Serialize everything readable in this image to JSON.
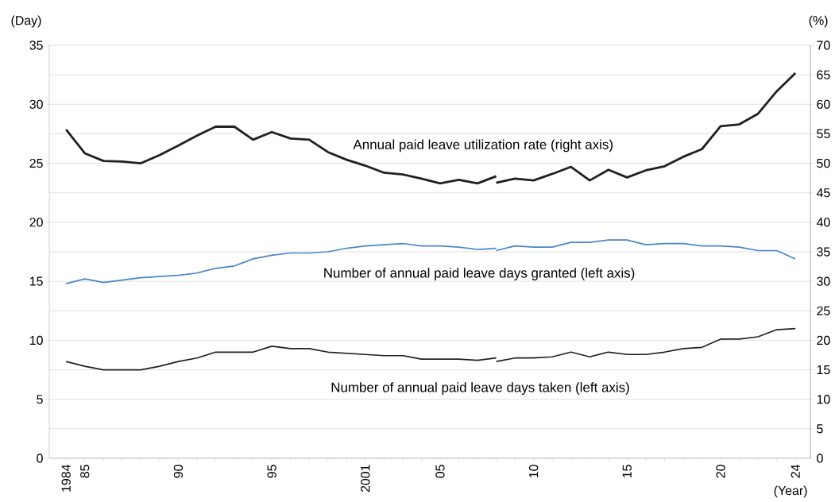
{
  "chart_data": {
    "type": "line",
    "categories": [
      "1984",
      "85",
      null,
      null,
      null,
      null,
      "90",
      null,
      null,
      null,
      null,
      "95",
      null,
      null,
      null,
      null,
      "2001",
      null,
      null,
      null,
      "05",
      null,
      null,
      null,
      null,
      "10",
      null,
      null,
      null,
      null,
      "15",
      null,
      null,
      null,
      null,
      "20",
      null,
      null,
      null,
      "24"
    ],
    "xlabel": "(Year)",
    "ylabel": "(Day)",
    "y2label": "(%)",
    "ylim": [
      0,
      35
    ],
    "yticks": [
      0,
      5,
      10,
      15,
      20,
      25,
      30,
      35
    ],
    "y2lim": [
      0,
      70
    ],
    "y2ticks": [
      0,
      5,
      10,
      15,
      20,
      25,
      30,
      35,
      40,
      45,
      50,
      55,
      60,
      65,
      70
    ],
    "grid": "y",
    "series": [
      {
        "name": "Annual paid leave utilization rate (right axis)",
        "axis": "y2",
        "color": "#231f20",
        "values": [
          55.7,
          51.7,
          50.4,
          50.3,
          50.0,
          51.4,
          53.0,
          54.7,
          56.2,
          56.2,
          54.0,
          55.3,
          54.2,
          54.0,
          51.9,
          50.6,
          49.6,
          48.4,
          48.1,
          47.4,
          46.6,
          47.2,
          46.6,
          47.8,
          null,
          null,
          null,
          null,
          null,
          null,
          null,
          null,
          null,
          null,
          null,
          null,
          null,
          null,
          null,
          null
        ]
      },
      {
        "axis": "y2",
        "color": "#231f20",
        "values": [
          null,
          null,
          null,
          null,
          null,
          null,
          null,
          null,
          null,
          null,
          null,
          null,
          null,
          null,
          null,
          null,
          null,
          null,
          null,
          null,
          null,
          null,
          null,
          46.7,
          47.4,
          47.1,
          48.2,
          49.4,
          47.1,
          48.9,
          47.6,
          48.8,
          49.5,
          51.1,
          52.4,
          56.3,
          56.6,
          58.4,
          62.2,
          65.3
        ]
      },
      {
        "name": "Number of annual paid leave days granted (left axis)",
        "color": "#4a86c8",
        "values": [
          14.8,
          15.2,
          14.9,
          15.1,
          15.3,
          15.4,
          15.5,
          15.7,
          16.1,
          16.3,
          16.9,
          17.2,
          17.4,
          17.4,
          17.5,
          17.8,
          18.0,
          18.1,
          18.2,
          18.0,
          18.0,
          17.9,
          17.7,
          17.8,
          null,
          null,
          null,
          null,
          null,
          null,
          null,
          null,
          null,
          null,
          null,
          null,
          null,
          null,
          null,
          null
        ]
      },
      {
        "color": "#4a86c8",
        "values": [
          null,
          null,
          null,
          null,
          null,
          null,
          null,
          null,
          null,
          null,
          null,
          null,
          null,
          null,
          null,
          null,
          null,
          null,
          null,
          null,
          null,
          null,
          null,
          17.6,
          18.0,
          17.9,
          17.9,
          18.3,
          18.3,
          18.5,
          18.5,
          18.1,
          18.2,
          18.2,
          18.0,
          18.0,
          17.9,
          17.6,
          17.6,
          16.9
        ]
      },
      {
        "name": "Number of annual paid leave days taken (left axis)",
        "color": "#231f20",
        "values": [
          8.2,
          7.8,
          7.5,
          7.5,
          7.5,
          7.8,
          8.2,
          8.5,
          9.0,
          9.0,
          9.0,
          9.5,
          9.3,
          9.3,
          9.0,
          8.9,
          8.8,
          8.7,
          8.7,
          8.4,
          8.4,
          8.4,
          8.3,
          8.5,
          null,
          null,
          null,
          null,
          null,
          null,
          null,
          null,
          null,
          null,
          null,
          null,
          null,
          null,
          null,
          null
        ]
      },
      {
        "color": "#231f20",
        "values": [
          null,
          null,
          null,
          null,
          null,
          null,
          null,
          null,
          null,
          null,
          null,
          null,
          null,
          null,
          null,
          null,
          null,
          null,
          null,
          null,
          null,
          null,
          null,
          8.2,
          8.5,
          8.5,
          8.6,
          9.0,
          8.6,
          9.0,
          8.8,
          8.8,
          9.0,
          9.3,
          9.4,
          10.1,
          10.1,
          10.3,
          10.9,
          11.0
        ]
      }
    ]
  }
}
